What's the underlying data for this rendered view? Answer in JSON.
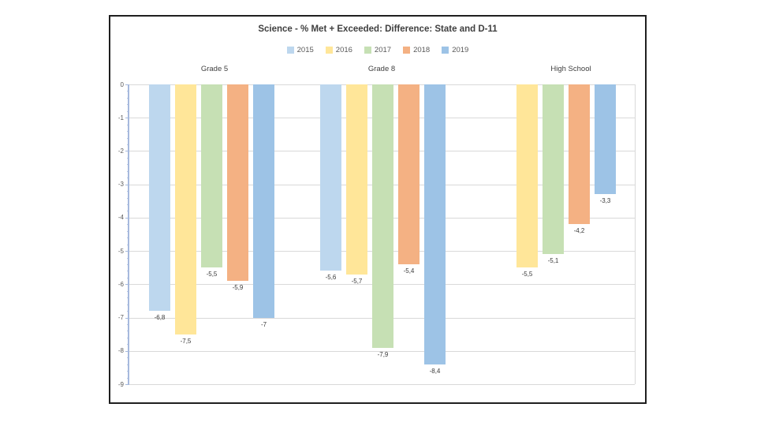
{
  "chart_data": {
    "type": "bar",
    "title": "Science - % Met + Exceeded: Difference: State and D-11",
    "categories": [
      "Grade 5",
      "Grade 8",
      "High School"
    ],
    "series": [
      {
        "name": "2015",
        "color": "#BDD7EE",
        "values": [
          -6.8,
          -5.6,
          null
        ],
        "labels": [
          "-6,8",
          "-5,6",
          null
        ]
      },
      {
        "name": "2016",
        "color": "#FFE699",
        "values": [
          -7.5,
          -5.7,
          -5.5
        ],
        "labels": [
          "-7,5",
          "-5,7",
          "-5,5"
        ]
      },
      {
        "name": "2017",
        "color": "#C6E0B4",
        "values": [
          -5.5,
          -7.9,
          -5.1
        ],
        "labels": [
          "-5,5",
          "-7,9",
          "-5,1"
        ]
      },
      {
        "name": "2018",
        "color": "#F4B183",
        "values": [
          -5.9,
          -5.4,
          -4.2
        ],
        "labels": [
          "-5,9",
          "-5,4",
          "-4,2"
        ]
      },
      {
        "name": "2019",
        "color": "#9DC3E6",
        "values": [
          -7.0,
          -8.4,
          -3.3
        ],
        "labels": [
          "-7",
          "-8,4",
          "-3,3"
        ]
      }
    ],
    "xlabel": "",
    "ylabel": "",
    "ylim": [
      -9,
      0
    ],
    "ytick_labels": [
      "0",
      "-1",
      "-2",
      "-3",
      "-4",
      "-5",
      "-6",
      "-7",
      "-8",
      "-9"
    ],
    "grid": true,
    "legend_position": "top",
    "axis_color": "#a6b9dd",
    "gridline_color": "#d9d9d9"
  }
}
